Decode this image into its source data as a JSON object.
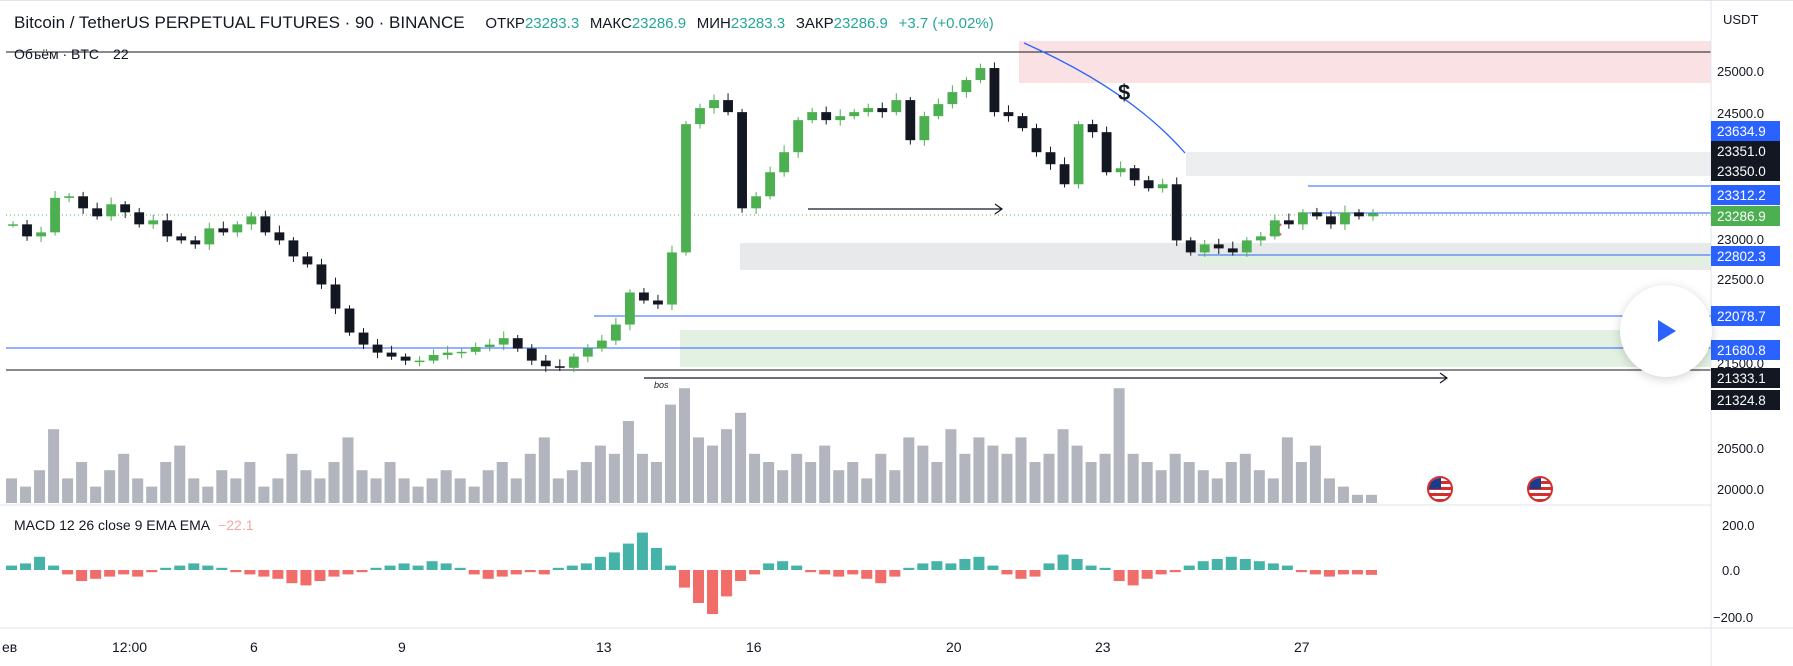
{
  "header": {
    "symbol": "Bitcoin / TetherUS PERPETUAL FUTURES · 90 · BINANCE",
    "open_label": "ОТКР",
    "open": "23283.3",
    "high_label": "МАКС",
    "high": "23286.9",
    "low_label": "МИН",
    "low": "23283.3",
    "close_label": "ЗАКР",
    "close": "23286.9",
    "change": "+3.7 (+0.02%)"
  },
  "volume_legend": {
    "label": "Объём · BTC",
    "value": "22"
  },
  "macd_legend": {
    "label": "MACD 12 26 close 9 EMA EMA",
    "value": "−22.1"
  },
  "currency": "USDT",
  "annotations": {
    "dollar": "$",
    "bos": "bos"
  },
  "icons": {
    "play": "play-icon",
    "flag": "us-flag-icon"
  },
  "colors": {
    "up": "#26a69a",
    "down": "#ef5350",
    "candle_up": "#4caf50",
    "candle_down": "#131722",
    "line_blue": "#2962ff",
    "axis_text": "#131722"
  },
  "chart_data": {
    "type": "candlestick",
    "title": "Bitcoin / TetherUS PERPETUAL FUTURES · 90 · BINANCE",
    "x_ticks": [
      "ев",
      "12:00",
      "6",
      "9",
      "13",
      "16",
      "20",
      "23",
      "27"
    ],
    "price_ticks": [
      "25000.0",
      "24500.0",
      "23000.0",
      "22500.0",
      "21500.0",
      "20500.0",
      "20000.0"
    ],
    "price_labels": [
      {
        "value": "23634.9",
        "kind": "blue"
      },
      {
        "value": "23351.0",
        "kind": "black"
      },
      {
        "value": "23350.0",
        "kind": "black"
      },
      {
        "value": "23312.2",
        "kind": "blue"
      },
      {
        "value": "23286.9",
        "kind": "green"
      },
      {
        "value": "22802.3",
        "kind": "blue"
      },
      {
        "value": "22078.7",
        "kind": "blue"
      },
      {
        "value": "21680.8",
        "kind": "blue"
      },
      {
        "value": "21333.1",
        "kind": "black"
      },
      {
        "value": "21324.8",
        "kind": "black"
      }
    ],
    "macd_ticks": [
      "200.0",
      "0.0",
      "−200.0"
    ],
    "ylim": [
      21100,
      25300
    ],
    "last_price": 23286.9,
    "price_path": [
      23150,
      23000,
      23050,
      23480,
      23500,
      23350,
      23250,
      23400,
      23300,
      23150,
      23200,
      23000,
      22950,
      22900,
      23100,
      23050,
      23150,
      23250,
      23050,
      22950,
      22750,
      22650,
      22400,
      22100,
      21800,
      21650,
      21550,
      21500,
      21450,
      21450,
      21520,
      21550,
      21560,
      21620,
      21650,
      21730,
      21600,
      21450,
      21380,
      21360,
      21500,
      21600,
      21700,
      21900,
      22300,
      22200,
      22150,
      22800,
      24400,
      24600,
      24700,
      24550,
      23350,
      23500,
      23800,
      24050,
      24450,
      24550,
      24450,
      24500,
      24550,
      24600,
      24550,
      24700,
      24200,
      24500,
      24650,
      24800,
      24950,
      25100,
      24550,
      24500,
      24350,
      24050,
      23900,
      23650,
      24400,
      24300,
      23800,
      23850,
      23700,
      23600,
      23650,
      22950,
      22800,
      22900,
      22850,
      22800,
      22950,
      23000,
      23200,
      23150,
      23300,
      23250,
      23150,
      23300,
      23250,
      23286.9
    ],
    "volume": [
      3,
      2,
      4,
      9,
      3,
      5,
      2,
      4,
      6,
      3,
      2,
      5,
      7,
      3,
      2,
      4,
      3,
      5,
      2,
      3,
      6,
      4,
      3,
      5,
      8,
      4,
      3,
      5,
      3,
      2,
      3,
      4,
      3,
      2,
      4,
      5,
      3,
      6,
      8,
      3,
      4,
      5,
      7,
      6,
      10,
      6,
      5,
      12,
      14,
      8,
      7,
      9,
      11,
      6,
      5,
      4,
      6,
      5,
      7,
      4,
      5,
      3,
      6,
      4,
      8,
      7,
      5,
      9,
      6,
      8,
      7,
      6,
      8,
      5,
      6,
      9,
      7,
      5,
      6,
      14,
      6,
      5,
      4,
      6,
      5,
      4,
      3,
      5,
      6,
      4,
      3,
      8,
      5,
      7,
      3,
      2,
      1,
      1
    ],
    "macd_hist": [
      20,
      30,
      60,
      20,
      -20,
      -50,
      -40,
      -30,
      -20,
      -30,
      -10,
      10,
      20,
      30,
      20,
      10,
      -10,
      -20,
      -30,
      -40,
      -60,
      -70,
      -50,
      -30,
      -20,
      -10,
      10,
      20,
      30,
      20,
      40,
      30,
      10,
      -20,
      -40,
      -30,
      -20,
      -10,
      -20,
      10,
      20,
      30,
      60,
      80,
      120,
      170,
      100,
      20,
      -80,
      -150,
      -200,
      -120,
      -50,
      -20,
      30,
      40,
      20,
      -10,
      -20,
      -30,
      -20,
      -40,
      -60,
      -30,
      10,
      30,
      40,
      30,
      50,
      60,
      20,
      -20,
      -40,
      -30,
      30,
      70,
      50,
      20,
      10,
      -50,
      -70,
      -40,
      -20,
      -10,
      20,
      40,
      50,
      60,
      50,
      40,
      30,
      20,
      -10,
      -20,
      -30,
      -20,
      -20,
      -22.1
    ]
  }
}
